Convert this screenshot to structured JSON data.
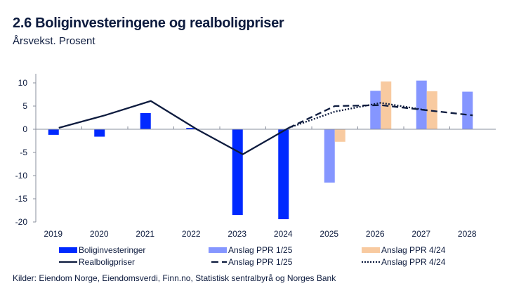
{
  "header": {
    "title": "2.6 Boliginvesteringene og realboligpriser",
    "subtitle": "Årsvekst. Prosent"
  },
  "source": "Kilder: Eiendom Norge, Eiendomsverdi, Finn.no, Statistisk sentralbyrå og Norges Bank",
  "colors": {
    "actual_bar": "#0029ff",
    "ppr125_bar": "#8596ff",
    "ppr424_bar": "#f8caa0",
    "line": "#0d1b3e",
    "axis": "#8a8f9c"
  },
  "legend": [
    {
      "label": "Boliginvesteringer",
      "kind": "bar",
      "color_key": "actual_bar"
    },
    {
      "label": "Anslag PPR 1/25",
      "kind": "bar",
      "color_key": "ppr125_bar"
    },
    {
      "label": "Anslag PPR 4/24",
      "kind": "bar",
      "color_key": "ppr424_bar"
    },
    {
      "label": "Realboligpriser",
      "kind": "solid",
      "color_key": "line"
    },
    {
      "label": "Anslag PPR 1/25",
      "kind": "dashed",
      "color_key": "line"
    },
    {
      "label": "Anslag PPR 4/24",
      "kind": "dotted",
      "color_key": "line"
    }
  ],
  "chart_data": {
    "type": "bar",
    "title": "2.6 Boliginvesteringene og realboligpriser",
    "subtitle": "Årsvekst. Prosent",
    "xlabel": "",
    "ylabel": "",
    "categories": [
      "2019",
      "2020",
      "2021",
      "2022",
      "2023",
      "2024",
      "2025",
      "2026",
      "2027",
      "2028"
    ],
    "ylim": [
      -20,
      10
    ],
    "yticks": [
      10,
      5,
      0,
      -5,
      -10,
      -15,
      -20
    ],
    "grid": false,
    "legend_position": "bottom",
    "bar_series": [
      {
        "name": "Boliginvesteringer",
        "slot": "left",
        "color_key": "actual_bar",
        "values": [
          -1.2,
          -1.6,
          3.5,
          0.3,
          -18.5,
          -19.4,
          null,
          null,
          null,
          null
        ]
      },
      {
        "name": "Anslag PPR 1/25",
        "slot": "left",
        "color_key": "ppr125_bar",
        "values": [
          null,
          null,
          null,
          null,
          null,
          null,
          -11.5,
          8.3,
          10.5,
          8.1
        ]
      },
      {
        "name": "Anslag PPR 4/24",
        "slot": "right",
        "color_key": "ppr424_bar",
        "values": [
          null,
          null,
          null,
          null,
          null,
          null,
          -2.7,
          10.3,
          8.2,
          null
        ]
      }
    ],
    "line_series": [
      {
        "name": "Realboligpriser",
        "style": "solid",
        "values": [
          0.3,
          3.0,
          6.1,
          0.0,
          -5.4,
          0.3,
          null,
          null,
          null,
          null
        ]
      },
      {
        "name": "Anslag PPR 1/25",
        "style": "dashed",
        "values": [
          null,
          null,
          null,
          null,
          null,
          0.3,
          5.0,
          5.2,
          4.1,
          3.0
        ]
      },
      {
        "name": "Anslag PPR 4/24",
        "style": "dotted",
        "values": [
          null,
          null,
          null,
          null,
          null,
          0.3,
          3.8,
          5.7,
          4.1,
          null
        ]
      }
    ]
  }
}
